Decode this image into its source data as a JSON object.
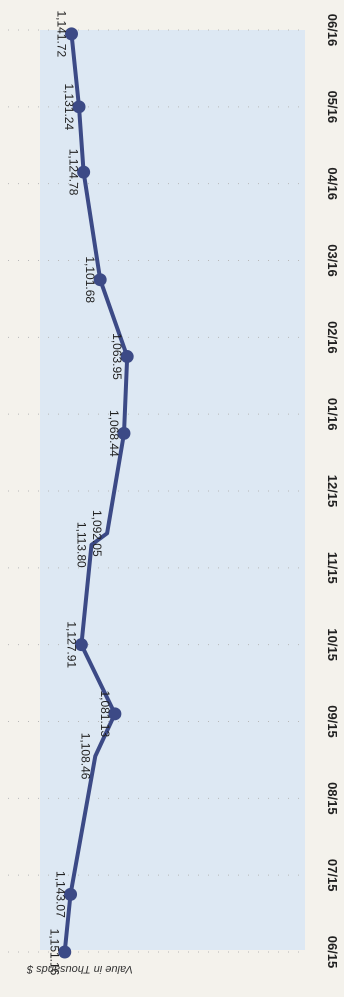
{
  "chart_data": {
    "type": "line",
    "orientation": "rotated-90-clockwise",
    "ylabel": "Value in Thousands $",
    "xlabel": "",
    "title": "",
    "categories": [
      "06/15",
      "07/15",
      "08/15",
      "09/15",
      "10/15",
      "11/15",
      "12/15",
      "01/16",
      "02/16",
      "03/16",
      "04/16",
      "05/16",
      "06/16"
    ],
    "points": [
      {
        "x": 0.0,
        "y": 1151.16,
        "label": "1,151.16"
      },
      {
        "x": 0.75,
        "y": 1143.07,
        "label": "1,143.07"
      },
      {
        "x": 2.55,
        "y": 1108.46,
        "label": "1,108.46"
      },
      {
        "x": 3.1,
        "y": 1081.13,
        "label": "1,081.13"
      },
      {
        "x": 4.0,
        "y": 1127.91,
        "label": "1,127.91"
      },
      {
        "x": 5.3,
        "y": 1113.8,
        "label": "1,113.80"
      },
      {
        "x": 5.45,
        "y": 1092.05,
        "label": "1,092.05"
      },
      {
        "x": 6.75,
        "y": 1068.44,
        "label": "1,068.44"
      },
      {
        "x": 7.75,
        "y": 1063.95,
        "label": "1,063.95"
      },
      {
        "x": 8.75,
        "y": 1101.68,
        "label": "1,101.68"
      },
      {
        "x": 10.15,
        "y": 1124.78,
        "label": "1,124.78"
      },
      {
        "x": 11.0,
        "y": 1131.24,
        "label": "1,131.24"
      },
      {
        "x": 11.95,
        "y": 1141.72,
        "label": "1,141.72"
      }
    ],
    "markers": [
      0,
      1,
      3,
      4,
      7,
      8,
      9,
      10,
      11,
      12
    ],
    "xlim": [
      0,
      12
    ],
    "grid": true,
    "colors": {
      "line": "#3c4a86",
      "marker": "#3c4a86",
      "plot_fill": "#dde8f3",
      "page_bg": "#f4f2ec",
      "text": "#222222",
      "grid": "#b8b8b8"
    }
  }
}
